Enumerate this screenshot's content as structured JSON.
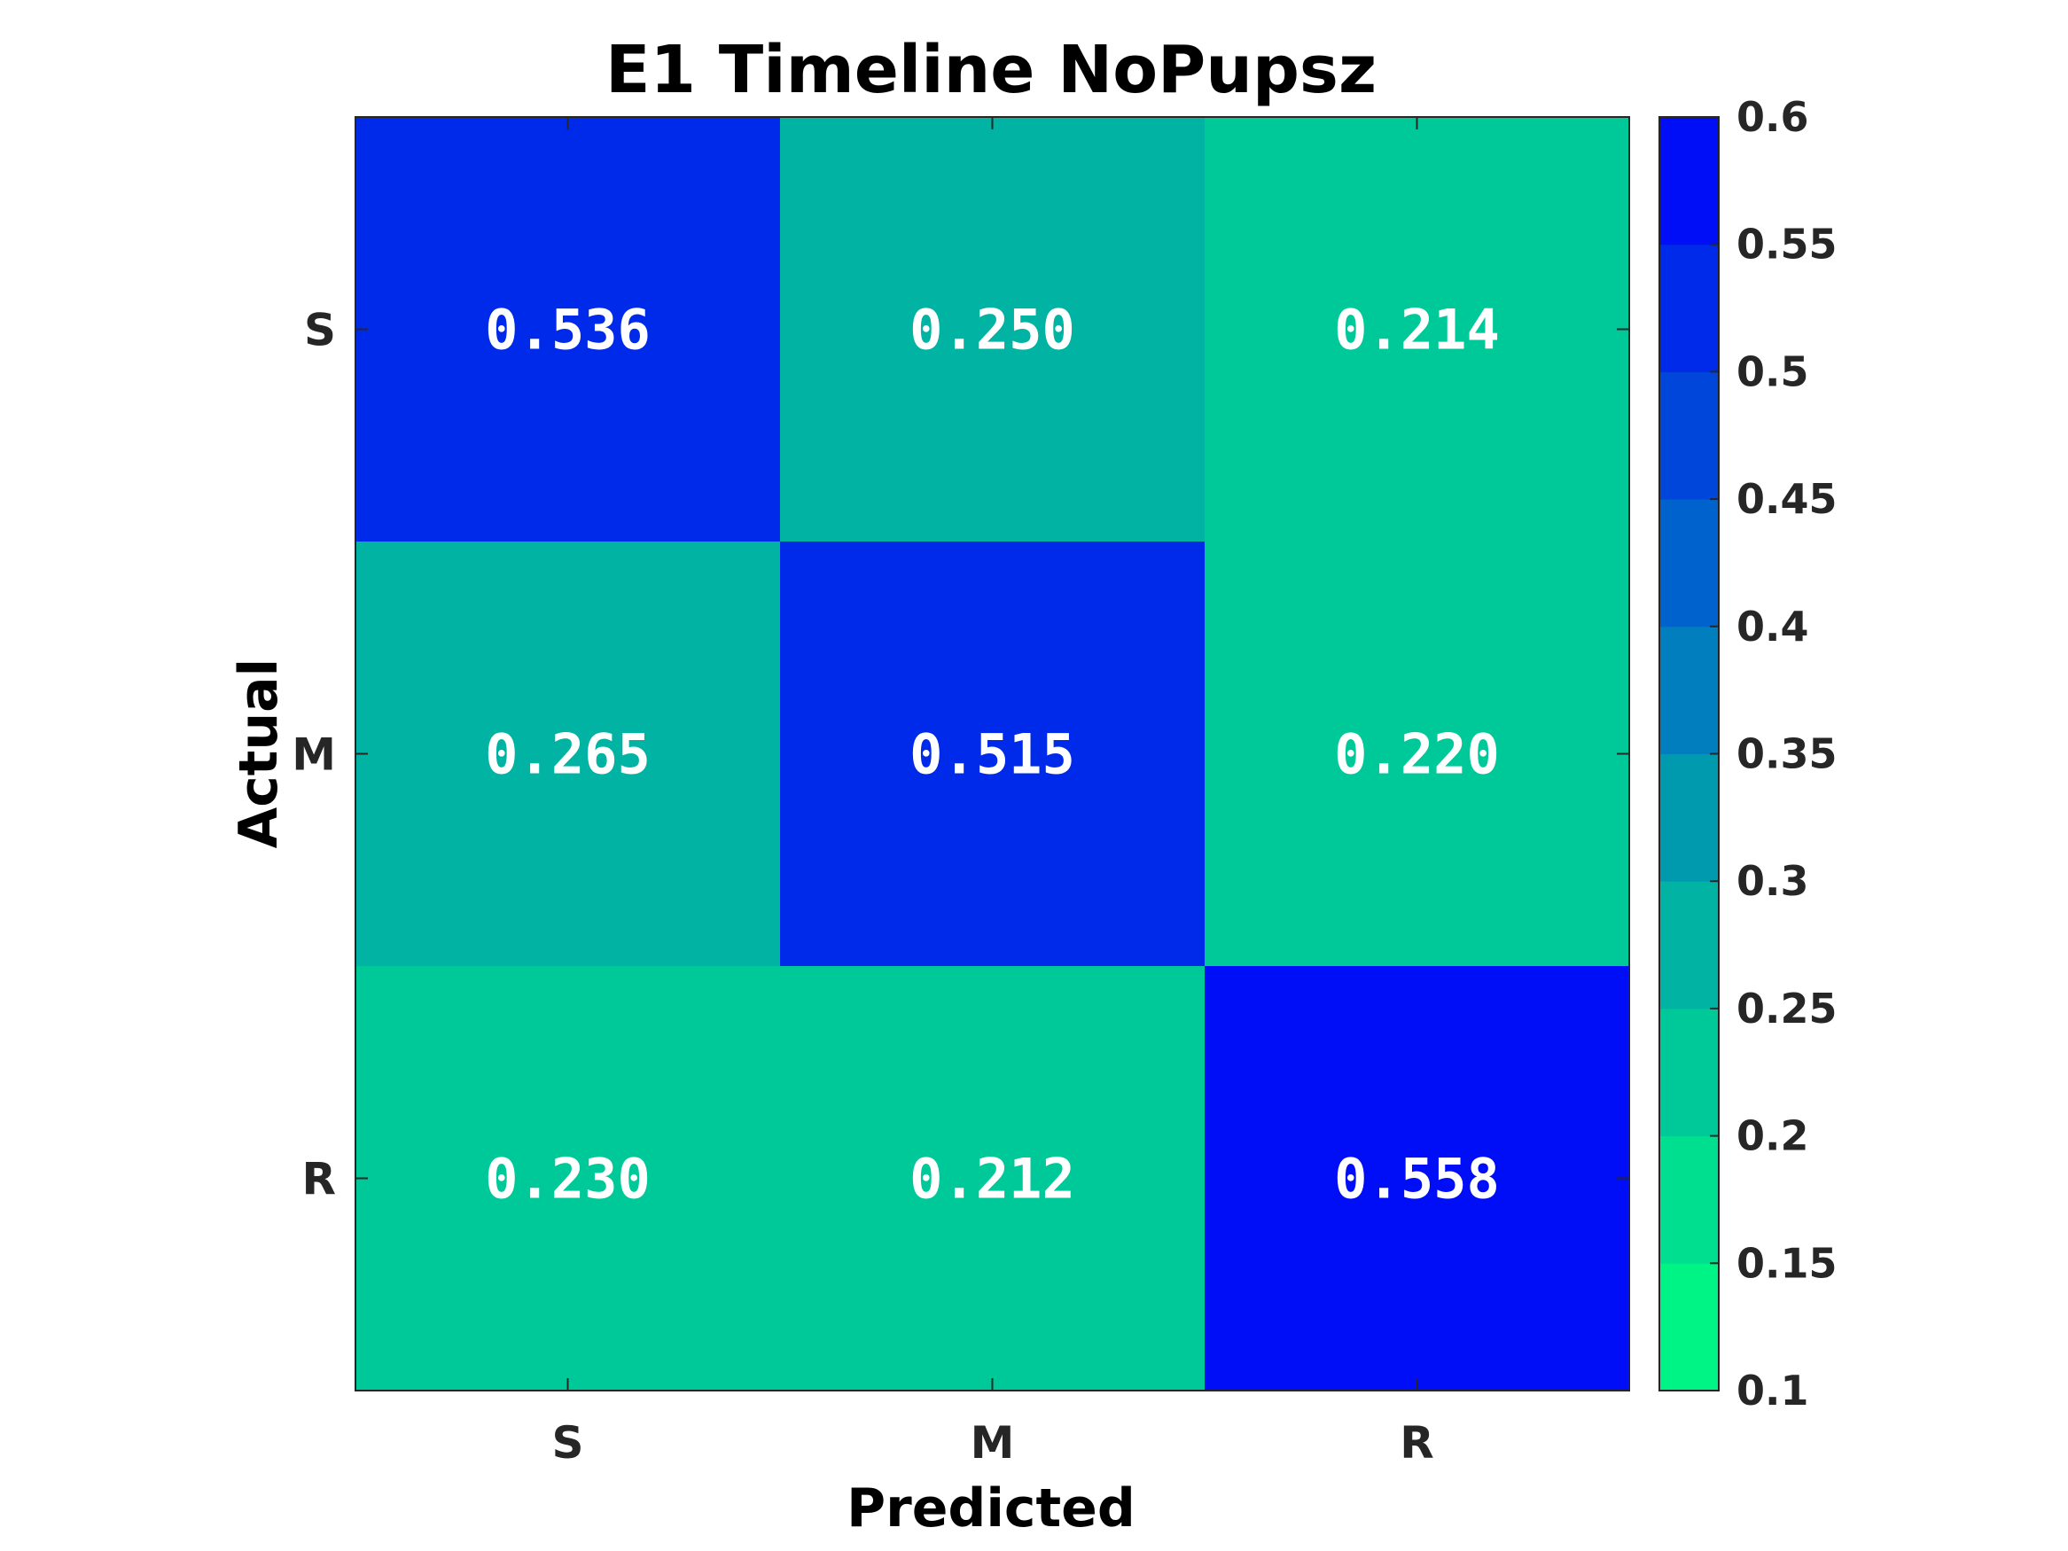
{
  "chart_data": {
    "type": "heatmap",
    "title": "E1 Timeline NoPupsz",
    "xlabel": "Predicted",
    "ylabel": "Actual",
    "x_categories": [
      "S",
      "M",
      "R"
    ],
    "y_categories": [
      "S",
      "M",
      "R"
    ],
    "values": [
      [
        0.536,
        0.25,
        0.214
      ],
      [
        0.265,
        0.515,
        0.22
      ],
      [
        0.23,
        0.212,
        0.558
      ]
    ],
    "value_labels": [
      [
        "0.536",
        "0.250",
        "0.214"
      ],
      [
        "0.265",
        "0.515",
        "0.220"
      ],
      [
        "0.230",
        "0.212",
        "0.558"
      ]
    ],
    "colorbar": {
      "min": 0.1,
      "max": 0.6,
      "step": 0.05,
      "ticks": [
        "0.1",
        "0.15",
        "0.2",
        "0.25",
        "0.3",
        "0.35",
        "0.4",
        "0.45",
        "0.5",
        "0.55",
        "0.6"
      ],
      "color_low": "#00ff80",
      "color_mid": "#00a8a8",
      "color_high": "#0000ff"
    },
    "grid": false,
    "legend": "colorbar-right"
  }
}
